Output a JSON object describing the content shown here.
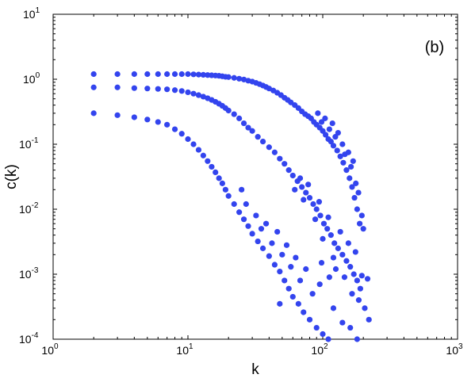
{
  "chart_data": {
    "type": "scatter",
    "xlabel": "k",
    "ylabel": "c(k)",
    "annotation": "(b)",
    "xscale": "log",
    "yscale": "log",
    "xlim": [
      1,
      1000
    ],
    "ylim": [
      0.0001,
      10
    ],
    "x_ticks": [
      {
        "value": 1,
        "base": "10",
        "exp": "0"
      },
      {
        "value": 10,
        "base": "10",
        "exp": "1"
      },
      {
        "value": 100,
        "base": "10",
        "exp": "2"
      },
      {
        "value": 1000,
        "base": "10",
        "exp": "3"
      }
    ],
    "y_ticks": [
      {
        "value": 0.0001,
        "base": "10",
        "exp": "-4"
      },
      {
        "value": 0.001,
        "base": "10",
        "exp": "-3"
      },
      {
        "value": 0.01,
        "base": "10",
        "exp": "-2"
      },
      {
        "value": 0.1,
        "base": "10",
        "exp": "-1"
      },
      {
        "value": 1,
        "base": "10",
        "exp": "0"
      },
      {
        "value": 10,
        "base": "10",
        "exp": "1"
      }
    ],
    "grid": false,
    "marker_color": "#3344ee",
    "series": [
      {
        "points": [
          [
            2,
            1.2
          ],
          [
            3,
            1.2
          ],
          [
            4,
            1.2
          ],
          [
            5,
            1.2
          ],
          [
            6,
            1.2
          ],
          [
            7,
            1.2
          ],
          [
            8,
            1.2
          ],
          [
            9,
            1.2
          ],
          [
            10,
            1.2
          ],
          [
            11,
            1.19
          ],
          [
            12,
            1.18
          ],
          [
            13,
            1.17
          ],
          [
            14,
            1.16
          ],
          [
            15,
            1.15
          ],
          [
            16,
            1.14
          ],
          [
            17,
            1.13
          ],
          [
            18,
            1.11
          ],
          [
            19,
            1.09
          ],
          [
            20,
            1.08
          ],
          [
            22,
            1.05
          ],
          [
            24,
            1.02
          ],
          [
            26,
            0.99
          ],
          [
            28,
            0.95
          ],
          [
            30,
            0.92
          ],
          [
            32,
            0.88
          ],
          [
            34,
            0.84
          ],
          [
            36,
            0.8
          ],
          [
            38,
            0.76
          ],
          [
            40,
            0.72
          ],
          [
            43,
            0.67
          ],
          [
            46,
            0.62
          ],
          [
            49,
            0.57
          ],
          [
            52,
            0.52
          ],
          [
            55,
            0.48
          ],
          [
            58,
            0.44
          ],
          [
            62,
            0.4
          ],
          [
            66,
            0.36
          ],
          [
            70,
            0.32
          ],
          [
            74,
            0.29
          ],
          [
            78,
            0.27
          ],
          [
            82,
            0.25
          ],
          [
            86,
            0.22
          ],
          [
            90,
            0.2
          ],
          [
            95,
            0.18
          ],
          [
            100,
            0.16
          ],
          [
            105,
            0.14
          ],
          [
            110,
            0.12
          ],
          [
            115,
            0.11
          ],
          [
            120,
            0.095
          ],
          [
            128,
            0.08
          ],
          [
            135,
            0.065
          ],
          [
            142,
            0.052
          ],
          [
            150,
            0.04
          ],
          [
            158,
            0.03
          ],
          [
            165,
            0.022
          ],
          [
            172,
            0.015
          ],
          [
            180,
            0.01
          ],
          [
            188,
            0.006
          ],
          [
            92,
            0.3
          ],
          [
            98,
            0.22
          ],
          [
            104,
            0.25
          ],
          [
            112,
            0.17
          ],
          [
            118,
            0.21
          ],
          [
            124,
            0.13
          ],
          [
            130,
            0.15
          ],
          [
            140,
            0.1
          ],
          [
            146,
            0.07
          ],
          [
            155,
            0.075
          ],
          [
            162,
            0.045
          ],
          [
            168,
            0.055
          ],
          [
            176,
            0.025
          ],
          [
            184,
            0.018
          ],
          [
            195,
            0.008
          ],
          [
            200,
            0.005
          ]
        ]
      },
      {
        "points": [
          [
            2,
            0.75
          ],
          [
            3,
            0.75
          ],
          [
            4,
            0.73
          ],
          [
            5,
            0.72
          ],
          [
            6,
            0.71
          ],
          [
            7,
            0.7
          ],
          [
            8,
            0.68
          ],
          [
            9,
            0.66
          ],
          [
            10,
            0.63
          ],
          [
            11,
            0.6
          ],
          [
            12,
            0.57
          ],
          [
            13,
            0.54
          ],
          [
            14,
            0.51
          ],
          [
            15,
            0.48
          ],
          [
            16,
            0.45
          ],
          [
            17,
            0.42
          ],
          [
            18,
            0.39
          ],
          [
            19,
            0.36
          ],
          [
            20,
            0.33
          ],
          [
            22,
            0.29
          ],
          [
            24,
            0.25
          ],
          [
            26,
            0.21
          ],
          [
            28,
            0.18
          ],
          [
            30,
            0.16
          ],
          [
            33,
            0.13
          ],
          [
            36,
            0.11
          ],
          [
            40,
            0.09
          ],
          [
            44,
            0.075
          ],
          [
            48,
            0.06
          ],
          [
            52,
            0.05
          ],
          [
            56,
            0.04
          ],
          [
            60,
            0.033
          ],
          [
            65,
            0.027
          ],
          [
            70,
            0.022
          ],
          [
            75,
            0.018
          ],
          [
            80,
            0.015
          ],
          [
            85,
            0.012
          ],
          [
            90,
            0.01
          ],
          [
            96,
            0.008
          ],
          [
            102,
            0.006
          ],
          [
            108,
            0.005
          ],
          [
            115,
            0.004
          ],
          [
            122,
            0.003
          ],
          [
            130,
            0.0025
          ],
          [
            140,
            0.002
          ],
          [
            150,
            0.0016
          ],
          [
            160,
            0.0013
          ],
          [
            170,
            0.001
          ],
          [
            180,
            0.0008
          ],
          [
            190,
            0.0006
          ],
          [
            62,
            0.02
          ],
          [
            68,
            0.03
          ],
          [
            72,
            0.014
          ],
          [
            78,
            0.024
          ],
          [
            88,
            0.007
          ],
          [
            94,
            0.013
          ],
          [
            100,
            0.0035
          ],
          [
            110,
            0.0075
          ],
          [
            120,
            0.0018
          ],
          [
            135,
            0.0045
          ],
          [
            145,
            0.0009
          ],
          [
            155,
            0.003
          ],
          [
            165,
            0.0005
          ],
          [
            175,
            0.0022
          ],
          [
            185,
            0.0004
          ],
          [
            195,
            0.00095
          ],
          [
            205,
            0.0003
          ],
          [
            125,
            0.0012
          ],
          [
            112,
            0.0009
          ],
          [
            98,
            0.0015
          ],
          [
            215,
            0.00085
          ]
        ]
      },
      {
        "points": [
          [
            2,
            0.3
          ],
          [
            3,
            0.28
          ],
          [
            4,
            0.26
          ],
          [
            5,
            0.24
          ],
          [
            6,
            0.22
          ],
          [
            7,
            0.2
          ],
          [
            8,
            0.17
          ],
          [
            9,
            0.145
          ],
          [
            10,
            0.12
          ],
          [
            11,
            0.1
          ],
          [
            12,
            0.082
          ],
          [
            13,
            0.067
          ],
          [
            14,
            0.055
          ],
          [
            15,
            0.045
          ],
          [
            16,
            0.037
          ],
          [
            17,
            0.03
          ],
          [
            18,
            0.025
          ],
          [
            19,
            0.02
          ],
          [
            20,
            0.016
          ],
          [
            22,
            0.012
          ],
          [
            24,
            0.009
          ],
          [
            26,
            0.007
          ],
          [
            28,
            0.0055
          ],
          [
            30,
            0.0042
          ],
          [
            33,
            0.0032
          ],
          [
            36,
            0.0025
          ],
          [
            40,
            0.0019
          ],
          [
            44,
            0.0014
          ],
          [
            48,
            0.0011
          ],
          [
            52,
            0.0008
          ],
          [
            56,
            0.0006
          ],
          [
            60,
            0.00045
          ],
          [
            66,
            0.00035
          ],
          [
            72,
            0.00026
          ],
          [
            80,
            0.0002
          ],
          [
            90,
            0.00015
          ],
          [
            100,
            0.00012
          ],
          [
            110,
            0.0001
          ],
          [
            25,
            0.02
          ],
          [
            27,
            0.012
          ],
          [
            32,
            0.008
          ],
          [
            35,
            0.005
          ],
          [
            38,
            0.006
          ],
          [
            42,
            0.003
          ],
          [
            46,
            0.0045
          ],
          [
            50,
            0.002
          ],
          [
            54,
            0.0028
          ],
          [
            58,
            0.0013
          ],
          [
            63,
            0.0018
          ],
          [
            68,
            0.0008
          ],
          [
            75,
            0.0012
          ],
          [
            84,
            0.0005
          ],
          [
            95,
            0.0007
          ],
          [
            48,
            0.00035
          ],
          [
            120,
            0.0003
          ],
          [
            140,
            0.00018
          ],
          [
            160,
            0.00015
          ],
          [
            180,
            0.0001
          ],
          [
            220,
            0.0002
          ]
        ]
      }
    ]
  }
}
